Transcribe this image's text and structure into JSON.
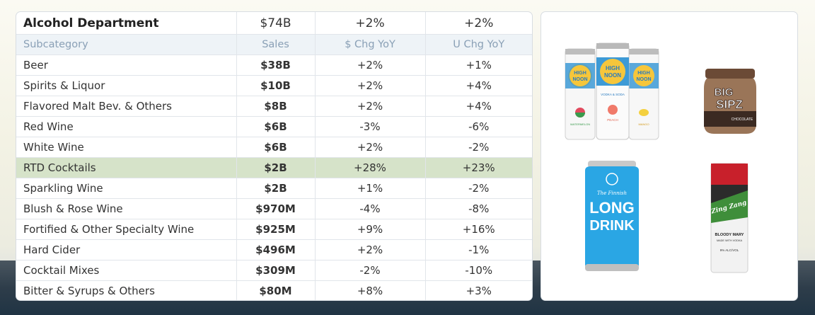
{
  "table": {
    "department": {
      "name": "Alcohol Department",
      "sales": "$74B",
      "dollar_chg": "+2%",
      "unit_chg": "+2%"
    },
    "headers": {
      "subcategory": "Subcategory",
      "sales": "Sales",
      "dollar_chg": "$ Chg YoY",
      "unit_chg": "U Chg YoY"
    },
    "rows": [
      {
        "name": "Beer",
        "sales": "$38B",
        "dollar_chg": "+2%",
        "unit_chg": "+1%"
      },
      {
        "name": "Spirits & Liquor",
        "sales": "$10B",
        "dollar_chg": "+2%",
        "unit_chg": "+4%"
      },
      {
        "name": "Flavored Malt Bev. & Others",
        "sales": "$8B",
        "dollar_chg": "+2%",
        "unit_chg": "+4%"
      },
      {
        "name": "Red Wine",
        "sales": "$6B",
        "dollar_chg": "-3%",
        "unit_chg": "-6%"
      },
      {
        "name": "White Wine",
        "sales": "$6B",
        "dollar_chg": "+2%",
        "unit_chg": "-2%"
      },
      {
        "name": "RTD Cocktails",
        "sales": "$2B",
        "dollar_chg": "+28%",
        "unit_chg": "+23%"
      },
      {
        "name": "Sparkling Wine",
        "sales": "$2B",
        "dollar_chg": "+1%",
        "unit_chg": "-2%"
      },
      {
        "name": "Blush & Rose Wine",
        "sales": "$970M",
        "dollar_chg": "-4%",
        "unit_chg": "-8%"
      },
      {
        "name": "Fortified & Other Specialty Wine",
        "sales": "$925M",
        "dollar_chg": "+9%",
        "unit_chg": "+16%"
      },
      {
        "name": "Hard Cider",
        "sales": "$496M",
        "dollar_chg": "+2%",
        "unit_chg": "-1%"
      },
      {
        "name": "Cocktail Mixes",
        "sales": "$309M",
        "dollar_chg": "-2%",
        "unit_chg": "-10%"
      },
      {
        "name": "Bitter & Syrups & Others",
        "sales": "$80M",
        "dollar_chg": "+8%",
        "unit_chg": "+3%"
      }
    ],
    "highlight_row": "RTD Cocktails"
  },
  "products": {
    "high_noon": {
      "brand_line1": "HIGH",
      "brand_line2": "NOON",
      "sub": "VODKA & SODA",
      "flavors": [
        "WATERMELON",
        "PEACH",
        "MANGO"
      ]
    },
    "big_sipz": {
      "line1": "BIG",
      "line2": "SIPZ",
      "flavor": "CHOCOLATE"
    },
    "long_drink": {
      "pre": "The Finnish",
      "line1": "LONG",
      "line2": "DRINK"
    },
    "zing_zang": {
      "brand": "Zing Zang",
      "line1": "BLOODY MARY",
      "line2": "MADE WITH VODKA",
      "abv": "9% ALC/VOL"
    }
  },
  "colors": {
    "negative": "#c0605a",
    "highlight": "#d6e3c9",
    "header_bg": "#eef3f7",
    "header_text": "#8aa0b6"
  }
}
